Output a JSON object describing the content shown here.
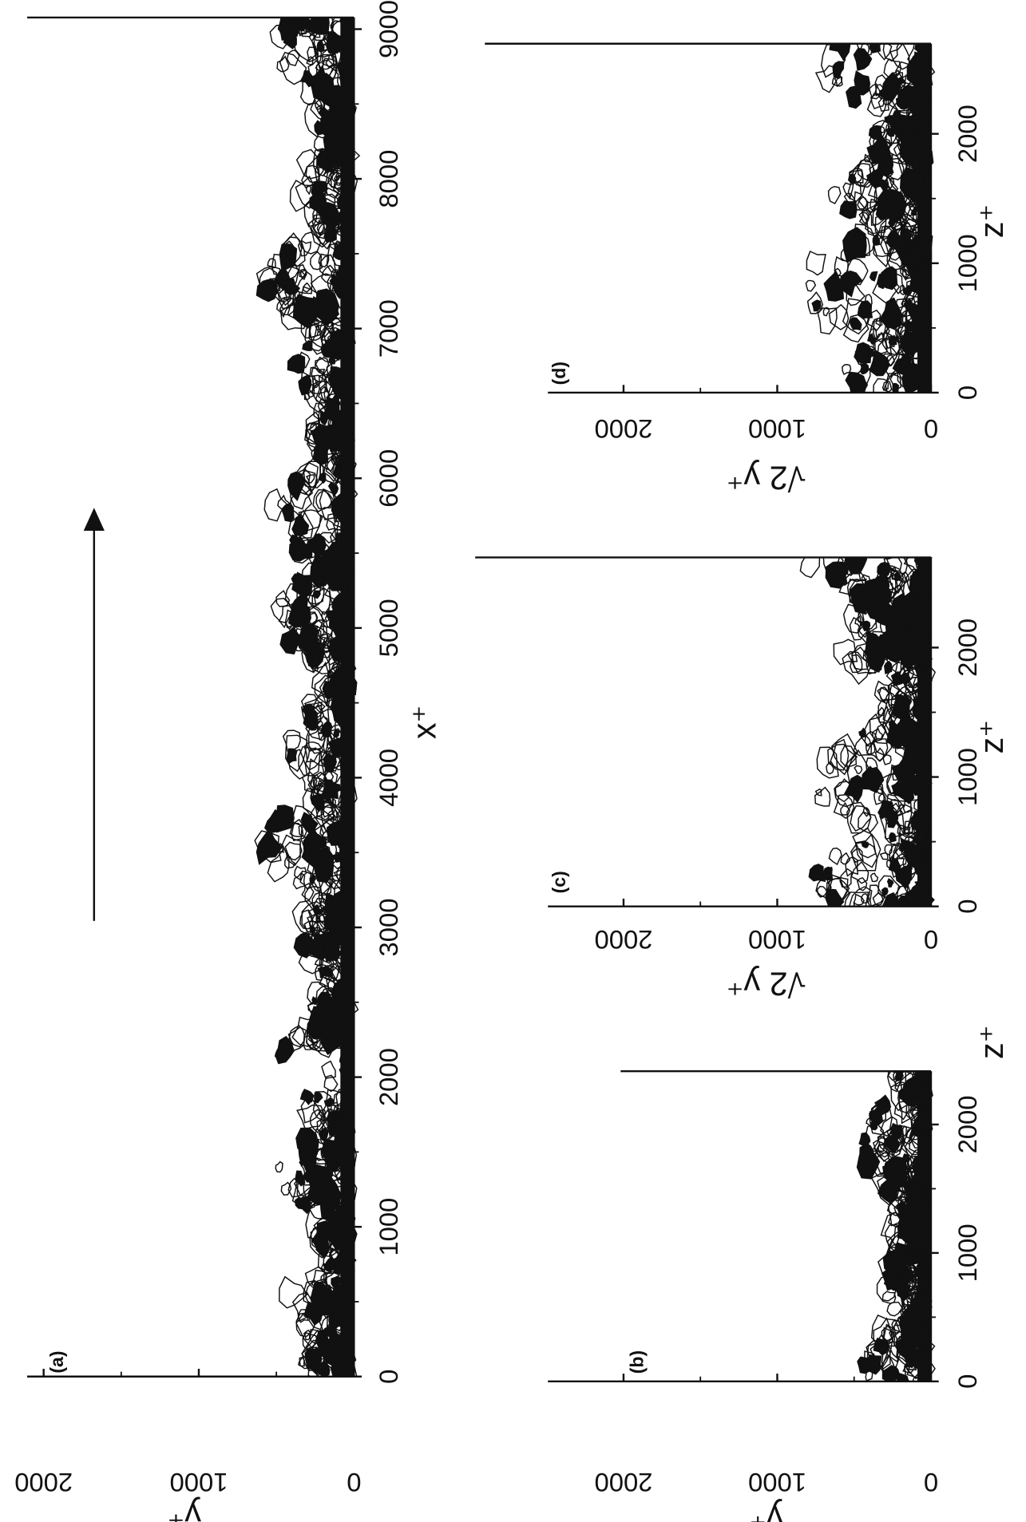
{
  "panels": [
    {
      "label": "(a)",
      "xlabel": "x⁺",
      "ylabel": "y⁺",
      "xticks": [
        0,
        1000,
        2000,
        3000,
        4000,
        5000,
        6000,
        7000,
        8000,
        9000
      ],
      "yticks": [
        0,
        1000,
        2000
      ]
    },
    {
      "label": "(b)",
      "xlabel": "z⁺",
      "ylabel": "y⁺",
      "xticks": [
        0,
        1000,
        2000
      ],
      "yticks": [
        0,
        1000,
        2000
      ]
    },
    {
      "label": "(c)",
      "xlabel": "z⁺",
      "ylabel": "√2 y⁺",
      "xticks": [
        0,
        1000,
        2000
      ],
      "yticks": [
        0,
        1000,
        2000
      ]
    },
    {
      "label": "(d)",
      "xlabel": "z⁺",
      "ylabel": "√2 y⁺",
      "xticks": [
        0,
        1000,
        2000
      ],
      "yticks": [
        0,
        1000,
        2000
      ]
    }
  ]
}
